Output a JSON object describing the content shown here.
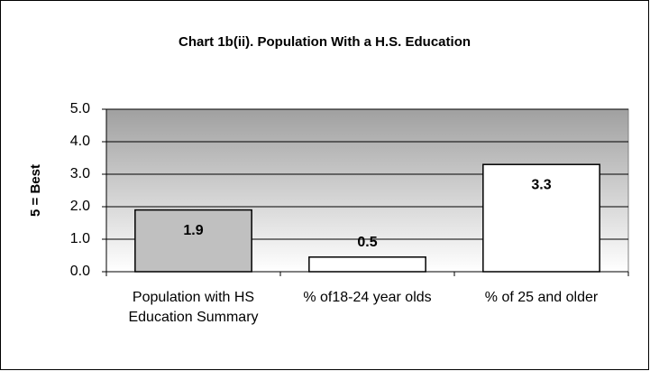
{
  "chart_data": {
    "type": "bar",
    "title": "Chart 1b(ii). Population With a H.S. Education",
    "y_label": "5 = Best",
    "categories": [
      "Population with HS Education Summary",
      "% of18-24 year olds",
      "% of 25 and older"
    ],
    "values": [
      1.9,
      0.45,
      3.3
    ],
    "value_labels": [
      "1.9",
      "0.5",
      "3.3"
    ],
    "colors": [
      "#c0c0c0",
      "#ffffff",
      "#ffffff"
    ],
    "ylim": [
      0,
      5
    ],
    "yticks": [
      {
        "value": 0,
        "label": "0.0"
      },
      {
        "value": 1,
        "label": "1.0"
      },
      {
        "value": 2,
        "label": "2.0"
      },
      {
        "value": 3,
        "label": "3.0"
      },
      {
        "value": 4,
        "label": "4.0"
      },
      {
        "value": 5,
        "label": "5.0"
      }
    ],
    "grid": true
  }
}
